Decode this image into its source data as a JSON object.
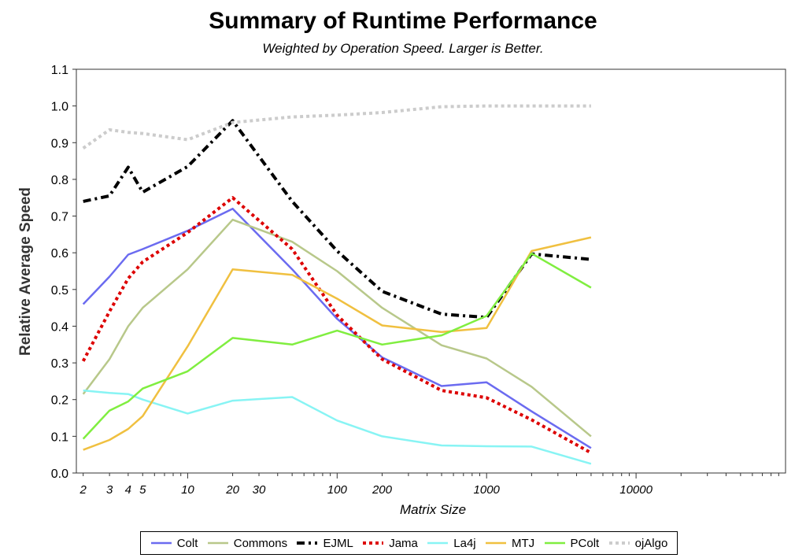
{
  "chart_data": {
    "type": "line",
    "title": "Summary of Runtime Performance",
    "subtitle": "Weighted by Operation Speed. Larger is Better.",
    "xlabel": "Matrix Size",
    "ylabel": "Relative Average Speed",
    "x_scale": "log",
    "xlim": [
      1.8,
      100000
    ],
    "ylim": [
      0,
      1.1
    ],
    "y_ticks": [
      "0.0",
      "0.1",
      "0.2",
      "0.3",
      "0.4",
      "0.5",
      "0.6",
      "0.7",
      "0.8",
      "0.9",
      "1.0",
      "1.1"
    ],
    "x_tick_labels": [
      {
        "value": 2,
        "label": "2"
      },
      {
        "value": 3,
        "label": "3"
      },
      {
        "value": 4,
        "label": "4"
      },
      {
        "value": 5,
        "label": "5"
      },
      {
        "value": 10,
        "label": "10"
      },
      {
        "value": 20,
        "label": "20"
      },
      {
        "value": 30,
        "label": "30"
      },
      {
        "value": 100,
        "label": "100"
      },
      {
        "value": 200,
        "label": "200"
      },
      {
        "value": 1000,
        "label": "1000"
      },
      {
        "value": 10000,
        "label": "10000"
      }
    ],
    "grid": false,
    "legend_position": "bottom",
    "x": [
      2,
      3,
      4,
      5,
      10,
      20,
      50,
      100,
      200,
      500,
      1000,
      2000,
      5000
    ],
    "series": [
      {
        "name": "Colt",
        "color": "#6b6bf0",
        "style": "solid",
        "values": [
          0.46,
          0.535,
          0.595,
          0.61,
          0.66,
          0.72,
          0.555,
          0.42,
          0.315,
          0.237,
          0.247,
          0.168,
          0.068
        ]
      },
      {
        "name": "Commons",
        "color": "#b8c88a",
        "style": "solid",
        "values": [
          0.215,
          0.31,
          0.4,
          0.45,
          0.555,
          0.69,
          0.63,
          0.55,
          0.45,
          0.348,
          0.312,
          0.235,
          0.1
        ]
      },
      {
        "name": "EJML",
        "color": "#000000",
        "style": "dashdot",
        "values": [
          0.74,
          0.755,
          0.833,
          0.765,
          0.835,
          0.96,
          0.74,
          0.605,
          0.495,
          0.433,
          0.424,
          0.597,
          0.582
        ]
      },
      {
        "name": "Jama",
        "color": "#dd0000",
        "style": "dotted",
        "values": [
          0.305,
          0.44,
          0.53,
          0.575,
          0.655,
          0.75,
          0.61,
          0.43,
          0.31,
          0.225,
          0.205,
          0.145,
          0.055
        ]
      },
      {
        "name": "La4j",
        "color": "#88f4f4",
        "style": "solid",
        "values": [
          0.225,
          0.218,
          0.215,
          0.2,
          0.162,
          0.197,
          0.207,
          0.143,
          0.1,
          0.075,
          0.073,
          0.072,
          0.025
        ]
      },
      {
        "name": "MTJ",
        "color": "#f0c040",
        "style": "solid",
        "values": [
          0.063,
          0.09,
          0.12,
          0.155,
          0.345,
          0.555,
          0.54,
          0.475,
          0.402,
          0.384,
          0.395,
          0.605,
          0.642
        ]
      },
      {
        "name": "PColt",
        "color": "#80ee40",
        "style": "solid",
        "values": [
          0.093,
          0.17,
          0.195,
          0.23,
          0.277,
          0.368,
          0.35,
          0.388,
          0.35,
          0.375,
          0.428,
          0.598,
          0.505
        ]
      },
      {
        "name": "ojAlgo",
        "color": "#cccccc",
        "style": "dotted",
        "values": [
          0.885,
          0.935,
          0.928,
          0.925,
          0.908,
          0.955,
          0.97,
          0.975,
          0.982,
          0.998,
          1.0,
          1.0,
          1.0
        ]
      }
    ]
  }
}
